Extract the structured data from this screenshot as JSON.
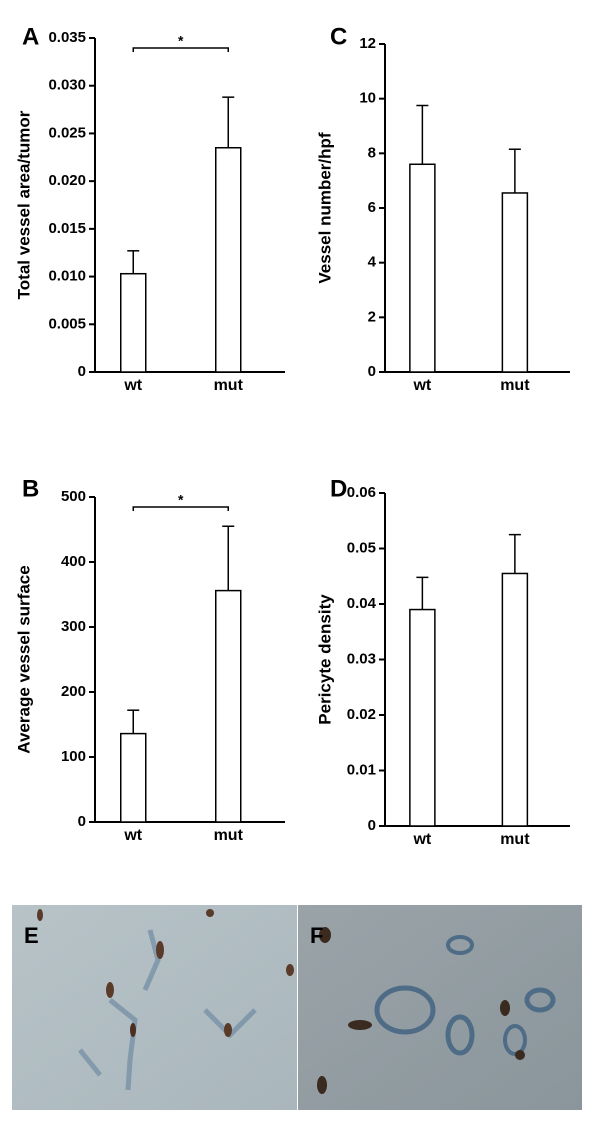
{
  "chart_data": [
    {
      "type": "bar",
      "panel": "A",
      "ylabel": "Total vessel area/tumor",
      "categories": [
        "wt",
        "mut"
      ],
      "values": [
        0.0103,
        0.0235
      ],
      "errors": [
        0.0024,
        0.0053
      ],
      "color": "#ffffff",
      "ylim": [
        0,
        0.035
      ],
      "yticks": [
        0,
        0.005,
        {
          "value": 0.01,
          "label": "0.010"
        },
        0.015,
        {
          "value": 0.02,
          "label": "0.020"
        },
        0.025,
        {
          "value": 0.03,
          "label": "0.030"
        },
        0.035
      ],
      "annotation": "*"
    },
    {
      "type": "bar",
      "panel": "B",
      "ylabel": "Average vessel surface",
      "categories": [
        "wt",
        "mut"
      ],
      "values": [
        136,
        356
      ],
      "errors": [
        36,
        99
      ],
      "color": "#ffffff",
      "ylim": [
        0,
        500
      ],
      "yticks": [
        0,
        100,
        200,
        300,
        400,
        500
      ],
      "annotation": "*"
    },
    {
      "type": "bar",
      "panel": "C",
      "ylabel": "Vessel number/hpf",
      "categories": [
        "wt",
        "mut"
      ],
      "values": [
        7.6,
        6.55
      ],
      "errors": [
        2.15,
        1.6
      ],
      "color": "#ffffff",
      "ylim": [
        0,
        12
      ],
      "yticks": [
        0,
        2,
        4,
        6,
        8,
        10,
        12
      ]
    },
    {
      "type": "bar",
      "panel": "D",
      "ylabel": "Pericyte density",
      "categories": [
        "wt",
        "mut"
      ],
      "values": [
        0.039,
        0.0455
      ],
      "errors": [
        0.0058,
        0.007
      ],
      "color": "#ffffff",
      "ylim": [
        0,
        0.06
      ],
      "yticks": [
        0,
        0.01,
        0.02,
        0.03,
        0.04,
        0.05,
        0.06
      ]
    }
  ],
  "image_labels": [
    "E",
    "F"
  ]
}
